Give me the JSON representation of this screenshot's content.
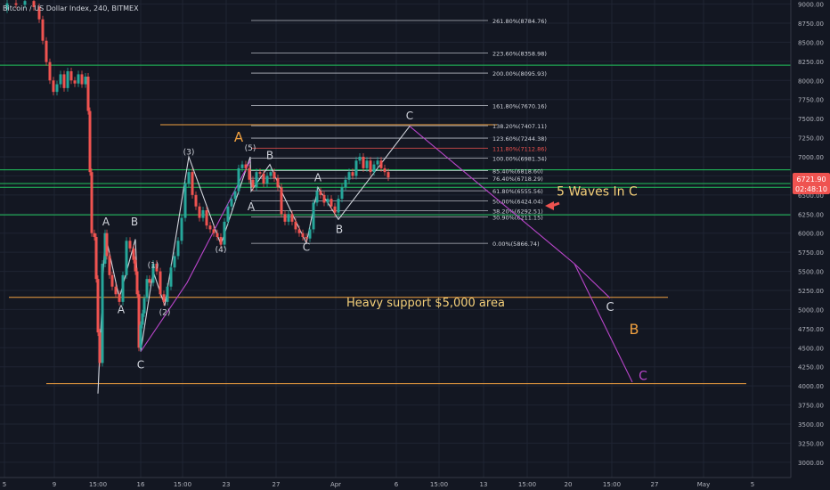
{
  "header": {
    "title": "Bitcoin / US Dollar Index, 240, BITMEX"
  },
  "price_tag": {
    "price": "6721.90",
    "countdown": "02:48:10"
  },
  "chart_data": {
    "type": "line",
    "ylim": [
      2800,
      9100
    ],
    "y_ticks": [
      9000,
      8750,
      8500,
      8250,
      8000,
      7750,
      7500,
      7250,
      7000,
      6750,
      6500,
      6250,
      6000,
      5750,
      5500,
      5250,
      5000,
      4750,
      4500,
      4250,
      4000,
      3750,
      3500,
      3250,
      3000
    ],
    "x_ticks": [
      {
        "label": "5",
        "t": 5
      },
      {
        "label": "9",
        "t": 61
      },
      {
        "label": "15:00",
        "t": 110
      },
      {
        "label": "16",
        "t": 158
      },
      {
        "label": "15:00",
        "t": 205
      },
      {
        "label": "23",
        "t": 254
      },
      {
        "label": "27",
        "t": 310
      },
      {
        "label": "Apr",
        "t": 377
      },
      {
        "label": "6",
        "t": 445
      },
      {
        "label": "15:00",
        "t": 493
      },
      {
        "label": "13",
        "t": 543
      },
      {
        "label": "15:00",
        "t": 592
      },
      {
        "label": "20",
        "t": 638
      },
      {
        "label": "15:00",
        "t": 687
      },
      {
        "label": "27",
        "t": 735
      },
      {
        "label": "May",
        "t": 790
      },
      {
        "label": "5",
        "t": 845
      }
    ],
    "series": [
      {
        "values": [
          [
            0,
            8930
          ],
          [
            8,
            9010
          ],
          [
            18,
            8990
          ],
          [
            28,
            9040
          ],
          [
            38,
            8960
          ],
          [
            44,
            8800
          ],
          [
            48,
            8520
          ],
          [
            52,
            8240
          ],
          [
            56,
            8000
          ],
          [
            60,
            7850
          ],
          [
            64,
            7950
          ],
          [
            68,
            8080
          ],
          [
            72,
            7900
          ],
          [
            76,
            8120
          ],
          [
            80,
            8000
          ],
          [
            84,
            7960
          ],
          [
            88,
            8080
          ],
          [
            92,
            7950
          ],
          [
            96,
            8050
          ],
          [
            99,
            7600
          ],
          [
            101,
            6800
          ],
          [
            103,
            6000
          ],
          [
            106,
            5950
          ],
          [
            108,
            5400
          ],
          [
            110,
            4700
          ],
          [
            112,
            4300
          ],
          [
            115,
            5600
          ],
          [
            118,
            6000
          ],
          [
            120,
            5700
          ],
          [
            123,
            5450
          ],
          [
            126,
            5300
          ],
          [
            130,
            5200
          ],
          [
            134,
            5100
          ],
          [
            138,
            5450
          ],
          [
            142,
            5900
          ],
          [
            146,
            5800
          ],
          [
            150,
            5650
          ],
          [
            152,
            5500
          ],
          [
            154,
            5200
          ],
          [
            156,
            4500
          ],
          [
            158,
            4800
          ],
          [
            160,
            4950
          ],
          [
            162,
            5150
          ],
          [
            165,
            5400
          ],
          [
            168,
            5350
          ],
          [
            172,
            5600
          ],
          [
            176,
            5500
          ],
          [
            180,
            5200
          ],
          [
            184,
            5100
          ],
          [
            188,
            5300
          ],
          [
            192,
            5550
          ],
          [
            196,
            5700
          ],
          [
            200,
            5900
          ],
          [
            204,
            6200
          ],
          [
            208,
            6650
          ],
          [
            212,
            6800
          ],
          [
            216,
            6500
          ],
          [
            220,
            6350
          ],
          [
            224,
            6200
          ],
          [
            228,
            6300
          ],
          [
            232,
            6100
          ],
          [
            236,
            6050
          ],
          [
            240,
            6000
          ],
          [
            244,
            5950
          ],
          [
            248,
            5850
          ],
          [
            252,
            6150
          ],
          [
            256,
            6350
          ],
          [
            260,
            6450
          ],
          [
            264,
            6550
          ],
          [
            268,
            6850
          ],
          [
            272,
            6900
          ],
          [
            276,
            6850
          ],
          [
            280,
            6700
          ],
          [
            284,
            6600
          ],
          [
            288,
            6800
          ],
          [
            292,
            6780
          ],
          [
            296,
            6650
          ],
          [
            300,
            6750
          ],
          [
            304,
            6800
          ],
          [
            308,
            6720
          ],
          [
            312,
            6600
          ],
          [
            316,
            6250
          ],
          [
            320,
            6150
          ],
          [
            324,
            6250
          ],
          [
            328,
            6150
          ],
          [
            332,
            6050
          ],
          [
            336,
            6000
          ],
          [
            340,
            5950
          ],
          [
            344,
            5930
          ],
          [
            348,
            6050
          ],
          [
            352,
            6400
          ],
          [
            356,
            6550
          ],
          [
            360,
            6500
          ],
          [
            364,
            6400
          ],
          [
            368,
            6450
          ],
          [
            372,
            6350
          ],
          [
            376,
            6270
          ],
          [
            380,
            6450
          ],
          [
            384,
            6600
          ],
          [
            388,
            6700
          ],
          [
            392,
            6800
          ],
          [
            396,
            6750
          ],
          [
            400,
            6950
          ],
          [
            404,
            7000
          ],
          [
            408,
            6850
          ],
          [
            412,
            6950
          ],
          [
            416,
            6800
          ],
          [
            420,
            6900
          ],
          [
            424,
            6950
          ],
          [
            428,
            6850
          ],
          [
            432,
            6800
          ],
          [
            436,
            6730
          ]
        ]
      }
    ],
    "horizontal_lines": [
      {
        "y": 8200,
        "color": "#22c55e"
      },
      {
        "y": 6830,
        "color": "#22c55e"
      },
      {
        "y": 6650,
        "color": "#22c55e"
      },
      {
        "y": 6600,
        "color": "#22c55e"
      },
      {
        "y": 6240,
        "color": "#22c55e"
      },
      {
        "y": 7420,
        "color": "#f0a040"
      },
      {
        "y": 5160,
        "color": "#f0a040"
      },
      {
        "y": 4030,
        "color": "#f0a040"
      }
    ],
    "fib_levels": [
      {
        "label": "261.80%(8784.76)",
        "y": 8784.76,
        "color": "#d1d4dc"
      },
      {
        "label": "223.60%(8358.98)",
        "y": 8358.98,
        "color": "#d1d4dc"
      },
      {
        "label": "200.00%(8095.93)",
        "y": 8095.93,
        "color": "#d1d4dc"
      },
      {
        "label": "161.80%(7670.16)",
        "y": 7670.16,
        "color": "#d1d4dc"
      },
      {
        "label": "138.20%(7407.11)",
        "y": 7407.11,
        "color": "#d1d4dc"
      },
      {
        "label": "123.60%(7244.38)",
        "y": 7244.38,
        "color": "#d1d4dc"
      },
      {
        "label": "111.80%(7112.86)",
        "y": 7112.86,
        "color": "#ef5350"
      },
      {
        "label": "100.00%(6981.34)",
        "y": 6981.34,
        "color": "#d1d4dc"
      },
      {
        "label": "85.40%(6818.60)",
        "y": 6818.6,
        "color": "#d1d4dc"
      },
      {
        "label": "76.40%(6718.29)",
        "y": 6718.29,
        "color": "#d1d4dc"
      },
      {
        "label": "61.80%(6555.56)",
        "y": 6555.56,
        "color": "#d1d4dc"
      },
      {
        "label": "50.00%(6424.04)",
        "y": 6424.04,
        "color": "#d1d4dc"
      },
      {
        "label": "38.20%(6292.51)",
        "y": 6292.51,
        "color": "#d1d4dc"
      },
      {
        "label": "30.90%(6211.15)",
        "y": 6211.15,
        "color": "#d1d4dc"
      },
      {
        "label": "0.00%(5866.74)",
        "y": 5866.74,
        "color": "#d1d4dc"
      }
    ],
    "wave_lines": [
      {
        "color": "#d1d4dc",
        "points": [
          [
            110,
            3900
          ],
          [
            118,
            6000
          ],
          [
            134,
            5150
          ],
          [
            152,
            5920
          ],
          [
            158,
            4450
          ],
          [
            172,
            5500
          ],
          [
            185,
            5050
          ],
          [
            212,
            7000
          ],
          [
            248,
            5850
          ],
          [
            281,
            7000
          ],
          [
            282,
            6550
          ],
          [
            303,
            6900
          ],
          [
            318,
            6500
          ],
          [
            344,
            5870
          ],
          [
            357,
            6600
          ],
          [
            380,
            6180
          ],
          [
            460,
            7400
          ]
        ]
      },
      {
        "color": "#b845c9",
        "points": [
          [
            158,
            4450
          ],
          [
            210,
            5350
          ],
          [
            281,
            6950
          ]
        ]
      },
      {
        "color": "#b845c9",
        "points": [
          [
            460,
            7400
          ],
          [
            645,
            5600
          ],
          [
            685,
            5150
          ]
        ]
      },
      {
        "color": "#b845c9",
        "points": [
          [
            645,
            5600
          ],
          [
            710,
            4050
          ]
        ]
      }
    ],
    "annotations": [
      {
        "text": "A",
        "t": 119,
        "y": 6100,
        "color": "#d1d4dc",
        "size": 12
      },
      {
        "text": "B",
        "t": 151,
        "y": 6100,
        "color": "#d1d4dc",
        "size": 12
      },
      {
        "text": "A",
        "t": 136,
        "y": 4950,
        "color": "#d1d4dc",
        "size": 12
      },
      {
        "text": "C",
        "t": 158,
        "y": 4230,
        "color": "#d1d4dc",
        "size": 12
      },
      {
        "text": "(1)",
        "t": 172,
        "y": 5550,
        "color": "#d1d4dc",
        "size": 9
      },
      {
        "text": "(2)",
        "t": 185,
        "y": 4930,
        "color": "#d1d4dc",
        "size": 9
      },
      {
        "text": "(3)",
        "t": 212,
        "y": 7030,
        "color": "#d1d4dc",
        "size": 9
      },
      {
        "text": "(4)",
        "t": 248,
        "y": 5750,
        "color": "#d1d4dc",
        "size": 9
      },
      {
        "text": "(5)",
        "t": 281,
        "y": 7080,
        "color": "#d1d4dc",
        "size": 9
      },
      {
        "text": "A",
        "t": 268,
        "y": 7200,
        "color": "#f0a040",
        "size": 15
      },
      {
        "text": "B",
        "t": 303,
        "y": 6970,
        "color": "#d1d4dc",
        "size": 12
      },
      {
        "text": "A",
        "t": 282,
        "y": 6300,
        "color": "#d1d4dc",
        "size": 12
      },
      {
        "text": "C",
        "t": 344,
        "y": 5770,
        "color": "#d1d4dc",
        "size": 12
      },
      {
        "text": "A",
        "t": 357,
        "y": 6680,
        "color": "#d1d4dc",
        "size": 12
      },
      {
        "text": "B",
        "t": 381,
        "y": 6000,
        "color": "#d1d4dc",
        "size": 12
      },
      {
        "text": "C",
        "t": 460,
        "y": 7490,
        "color": "#d1d4dc",
        "size": 12
      },
      {
        "text": "5 Waves In C",
        "t": 625,
        "y": 6490,
        "color": "#f5d07a",
        "size": 14,
        "anchor": "start"
      },
      {
        "text": "Heavy support $5,000 area",
        "t": 389,
        "y": 5040,
        "color": "#f5d07a",
        "size": 13,
        "anchor": "start"
      },
      {
        "text": "C",
        "t": 685,
        "y": 4980,
        "color": "#d1d4dc",
        "size": 13
      },
      {
        "text": "B",
        "t": 712,
        "y": 4680,
        "color": "#f0a040",
        "size": 16
      },
      {
        "text": "C",
        "t": 722,
        "y": 4080,
        "color": "#b845c9",
        "size": 14
      }
    ]
  }
}
